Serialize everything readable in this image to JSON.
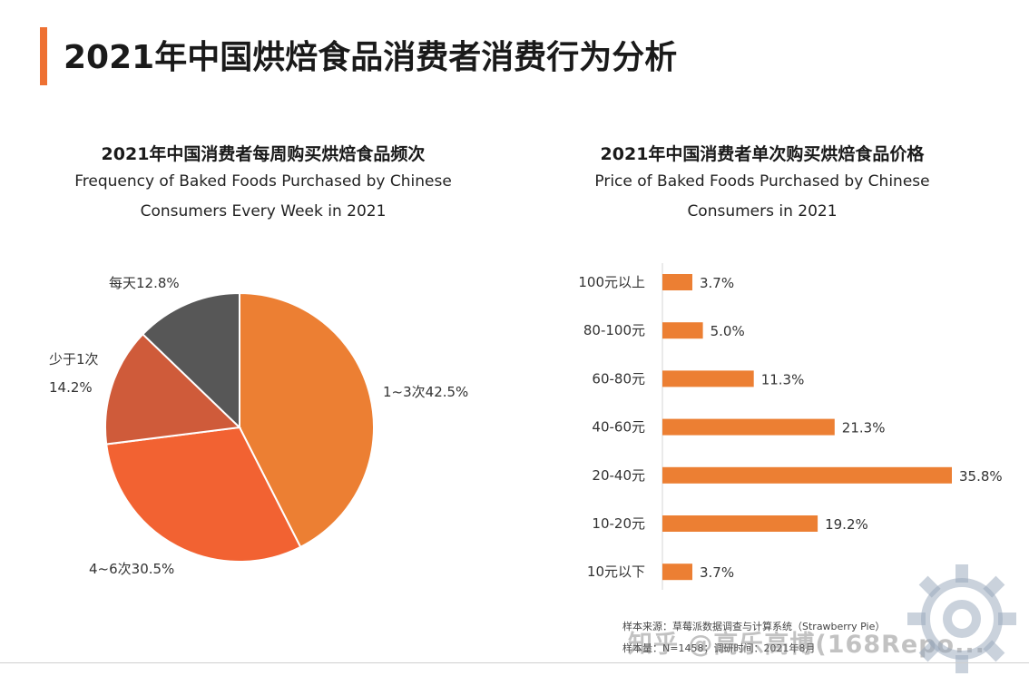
{
  "page": {
    "title": "2021年中国烘焙食品消费者消费行为分析",
    "accent_color": "#EE7133"
  },
  "left_chart": {
    "title_zh": "2021年中国消费者每周购买烘焙食品频次",
    "title_en_line1": "Frequency of Baked Foods Purchased by Chinese",
    "title_en_line2": "Consumers Every Week in 2021"
  },
  "right_chart": {
    "title_zh": "2021年中国消费者单次购买烘焙食品价格",
    "title_en_line1": "Price of Baked Foods Purchased by Chinese",
    "title_en_line2": "Consumers in 2021"
  },
  "chart_data": [
    {
      "type": "pie",
      "title": "2021年中国消费者每周购买烘焙食品频次",
      "slices": [
        {
          "label": "1~3次",
          "value": 42.5,
          "display": "1~3次42.5%",
          "color": "#EC7F33"
        },
        {
          "label": "4~6次",
          "value": 30.5,
          "display": "4~6次30.5%",
          "color": "#F26232"
        },
        {
          "label": "少于1次",
          "value": 14.2,
          "display_line1": "少于1次",
          "display_line2": "14.2%",
          "color": "#CF5B3A"
        },
        {
          "label": "每天",
          "value": 12.8,
          "display": "每天12.8%",
          "color": "#575757"
        }
      ]
    },
    {
      "type": "bar",
      "orientation": "horizontal",
      "title": "2021年中国消费者单次购买烘焙食品价格",
      "unit": "%",
      "color": "#EC7F33",
      "categories": [
        "100元以上",
        "80-100元",
        "60-80元",
        "40-60元",
        "20-40元",
        "10-20元",
        "10元以下"
      ],
      "values": [
        3.7,
        5.0,
        11.3,
        21.3,
        35.8,
        19.2,
        3.7
      ],
      "value_labels": [
        "3.7%",
        "5.0%",
        "11.3%",
        "21.3%",
        "35.8%",
        "19.2%",
        "3.7%"
      ]
    }
  ],
  "footer": {
    "source_line1": "样本来源：草莓派数据调查与计算系统（Strawberry Pie）",
    "source_line2": "样本量：N=1458；调研时间：2021年8月",
    "watermark": "知乎 @高乐高博(168Repo..."
  }
}
